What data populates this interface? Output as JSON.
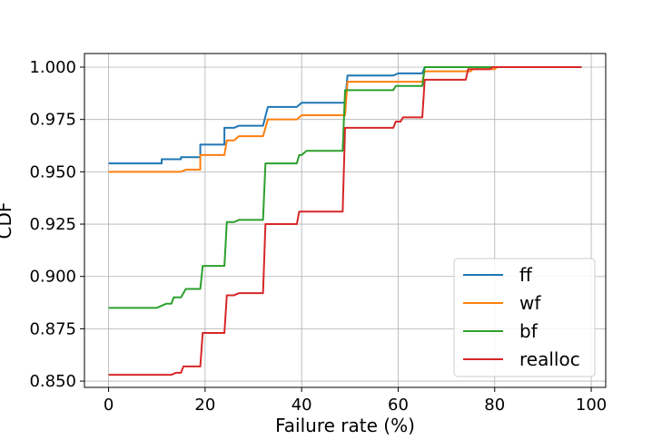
{
  "chart_data": {
    "type": "line",
    "step": true,
    "xlabel": "Failure rate (%)",
    "ylabel": "CDF",
    "xlim": [
      -5,
      103
    ],
    "ylim": [
      0.847,
      1.0065
    ],
    "xticks": [
      0,
      20,
      40,
      60,
      80,
      100
    ],
    "xtick_labels": [
      "0",
      "20",
      "40",
      "60",
      "80",
      "100"
    ],
    "yticks": [
      0.85,
      0.875,
      0.9,
      0.925,
      0.95,
      0.975,
      1.0
    ],
    "ytick_labels": [
      "0.850",
      "0.875",
      "0.900",
      "0.925",
      "0.950",
      "0.975",
      "1.000"
    ],
    "grid": true,
    "legend_position": "lower-right",
    "series": [
      {
        "name": "ff",
        "color": "#1f77b4",
        "points": [
          [
            0,
            0.954
          ],
          [
            11,
            0.954
          ],
          [
            11,
            0.956
          ],
          [
            15,
            0.956
          ],
          [
            15,
            0.957
          ],
          [
            19,
            0.957
          ],
          [
            19,
            0.963
          ],
          [
            24,
            0.963
          ],
          [
            24,
            0.971
          ],
          [
            26,
            0.971
          ],
          [
            27,
            0.972
          ],
          [
            32,
            0.972
          ],
          [
            33,
            0.981
          ],
          [
            39,
            0.981
          ],
          [
            40,
            0.983
          ],
          [
            49,
            0.983
          ],
          [
            49.5,
            0.996
          ],
          [
            59,
            0.996
          ],
          [
            60,
            0.997
          ],
          [
            65,
            0.997
          ],
          [
            65.5,
            1.0
          ],
          [
            98,
            1.0
          ]
        ]
      },
      {
        "name": "wf",
        "color": "#ff7f0e",
        "points": [
          [
            0,
            0.95
          ],
          [
            15,
            0.95
          ],
          [
            16,
            0.951
          ],
          [
            19,
            0.951
          ],
          [
            19,
            0.958
          ],
          [
            24,
            0.958
          ],
          [
            24.5,
            0.965
          ],
          [
            26,
            0.965
          ],
          [
            27,
            0.967
          ],
          [
            32,
            0.967
          ],
          [
            33,
            0.975
          ],
          [
            39,
            0.975
          ],
          [
            40,
            0.977
          ],
          [
            49,
            0.977
          ],
          [
            49.5,
            0.993
          ],
          [
            65,
            0.993
          ],
          [
            65.5,
            0.998
          ],
          [
            75,
            0.998
          ],
          [
            75.5,
            0.999
          ],
          [
            80,
            0.999
          ],
          [
            80.5,
            1.0
          ],
          [
            98,
            1.0
          ]
        ]
      },
      {
        "name": "bf",
        "color": "#2ca02c",
        "points": [
          [
            0,
            0.885
          ],
          [
            10,
            0.885
          ],
          [
            12,
            0.887
          ],
          [
            13,
            0.887
          ],
          [
            13.5,
            0.89
          ],
          [
            15,
            0.89
          ],
          [
            16,
            0.894
          ],
          [
            19,
            0.894
          ],
          [
            19.5,
            0.905
          ],
          [
            24,
            0.905
          ],
          [
            24.5,
            0.926
          ],
          [
            26,
            0.926
          ],
          [
            27,
            0.927
          ],
          [
            32,
            0.927
          ],
          [
            32.5,
            0.954
          ],
          [
            39,
            0.954
          ],
          [
            39.5,
            0.958
          ],
          [
            40,
            0.958
          ],
          [
            41,
            0.96
          ],
          [
            48.5,
            0.96
          ],
          [
            49,
            0.989
          ],
          [
            59,
            0.989
          ],
          [
            59.5,
            0.991
          ],
          [
            65,
            0.991
          ],
          [
            65.5,
            1.0
          ],
          [
            98,
            1.0
          ]
        ]
      },
      {
        "name": "realloc",
        "color": "#d62728",
        "points": [
          [
            0,
            0.853
          ],
          [
            13,
            0.853
          ],
          [
            14,
            0.854
          ],
          [
            15,
            0.854
          ],
          [
            15.5,
            0.857
          ],
          [
            19,
            0.857
          ],
          [
            19.5,
            0.873
          ],
          [
            24,
            0.873
          ],
          [
            24.5,
            0.891
          ],
          [
            26,
            0.891
          ],
          [
            27,
            0.892
          ],
          [
            32,
            0.892
          ],
          [
            32.5,
            0.925
          ],
          [
            39,
            0.925
          ],
          [
            39.5,
            0.931
          ],
          [
            48.5,
            0.931
          ],
          [
            49,
            0.971
          ],
          [
            59,
            0.971
          ],
          [
            59.5,
            0.974
          ],
          [
            60.5,
            0.974
          ],
          [
            61,
            0.976
          ],
          [
            64,
            0.976
          ],
          [
            65,
            0.976
          ],
          [
            65.5,
            0.994
          ],
          [
            74,
            0.994
          ],
          [
            74.5,
            0.999
          ],
          [
            79,
            0.999
          ],
          [
            79.5,
            1.0
          ],
          [
            98,
            1.0
          ]
        ]
      }
    ]
  }
}
